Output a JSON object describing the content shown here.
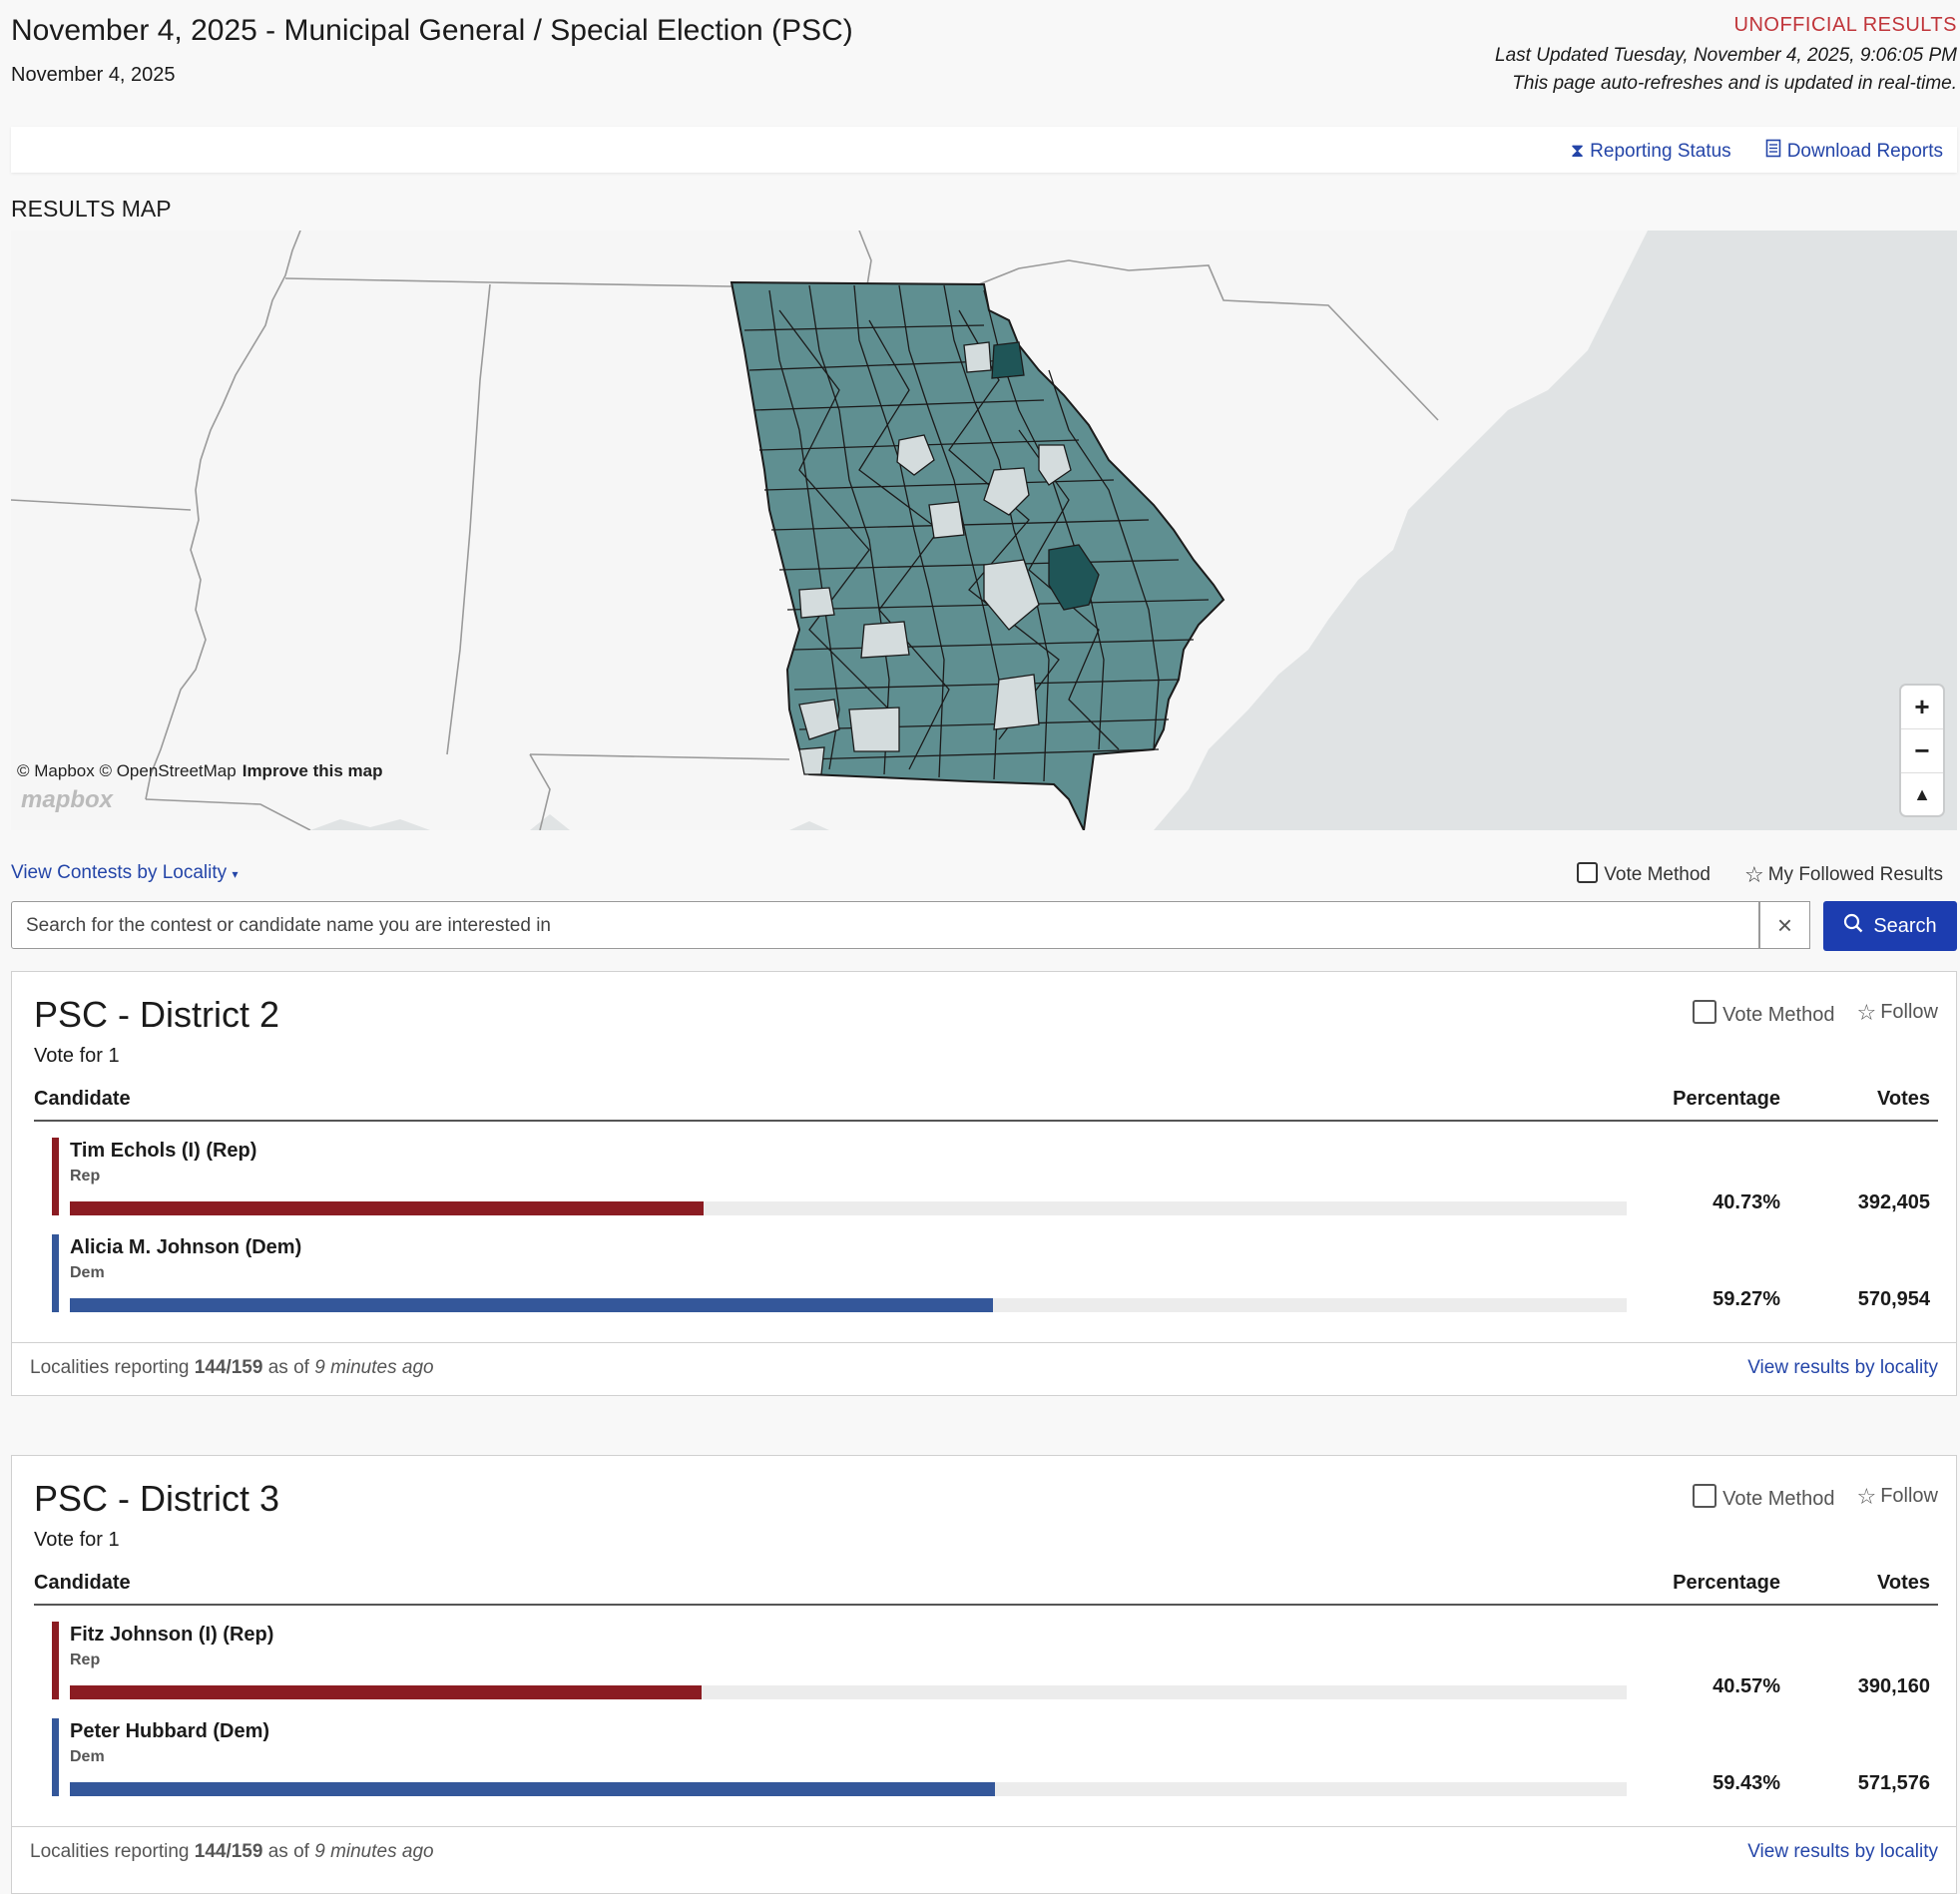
{
  "header": {
    "title": "November 4, 2025 - Municipal General / Special Election (PSC)",
    "date": "November 4, 2025",
    "status": "UNOFFICIAL RESULTS",
    "last_updated": "Last Updated Tuesday, November 4, 2025, 9:06:05 PM",
    "auto_refresh": "This page auto-refreshes and is updated in real-time."
  },
  "toolbar": {
    "reporting_status": "Reporting Status",
    "download_reports": "Download Reports"
  },
  "map": {
    "heading": "RESULTS MAP",
    "attribution": "© Mapbox © OpenStreetMap",
    "improve": "Improve this map",
    "logo": "mapbox",
    "colors": {
      "state_fill": "#5f8f91",
      "dark_fill": "#1f5557",
      "no_results": "#d4dcdd",
      "water": "#e0e3e4",
      "land": "#f6f6f6"
    }
  },
  "filters": {
    "locality": "View Contests by Locality",
    "vote_method": "Vote Method",
    "followed": "My Followed Results"
  },
  "search": {
    "placeholder": "Search for the contest or candidate name you are interested in",
    "button": "Search"
  },
  "columns": {
    "candidate": "Candidate",
    "percentage": "Percentage",
    "votes": "Votes"
  },
  "contests": [
    {
      "title": "PSC - District 2",
      "vote_for": "Vote for 1",
      "vote_method": "Vote Method",
      "follow": "Follow",
      "candidates": [
        {
          "name": "Tim Echols (I) (Rep)",
          "party": "Rep",
          "percentage": "40.73%",
          "share": 0.4073,
          "votes": "392,405",
          "color": "#8b1c22"
        },
        {
          "name": "Alicia M. Johnson (Dem)",
          "party": "Dem",
          "percentage": "59.27%",
          "share": 0.5927,
          "votes": "570,954",
          "color": "#34579a"
        }
      ],
      "reporting_label": "Localities reporting",
      "reporting": "144/159",
      "as_of": "as of",
      "time_ago": "9 minutes ago",
      "view_locality": "View results by locality"
    },
    {
      "title": "PSC - District 3",
      "vote_for": "Vote for 1",
      "vote_method": "Vote Method",
      "follow": "Follow",
      "candidates": [
        {
          "name": "Fitz Johnson (I) (Rep)",
          "party": "Rep",
          "percentage": "40.57%",
          "share": 0.4057,
          "votes": "390,160",
          "color": "#8b1c22"
        },
        {
          "name": "Peter Hubbard (Dem)",
          "party": "Dem",
          "percentage": "59.43%",
          "share": 0.5943,
          "votes": "571,576",
          "color": "#34579a"
        }
      ],
      "reporting_label": "Localities reporting",
      "reporting": "144/159",
      "as_of": "as of",
      "time_ago": "9 minutes ago",
      "view_locality": "View results by locality"
    }
  ]
}
